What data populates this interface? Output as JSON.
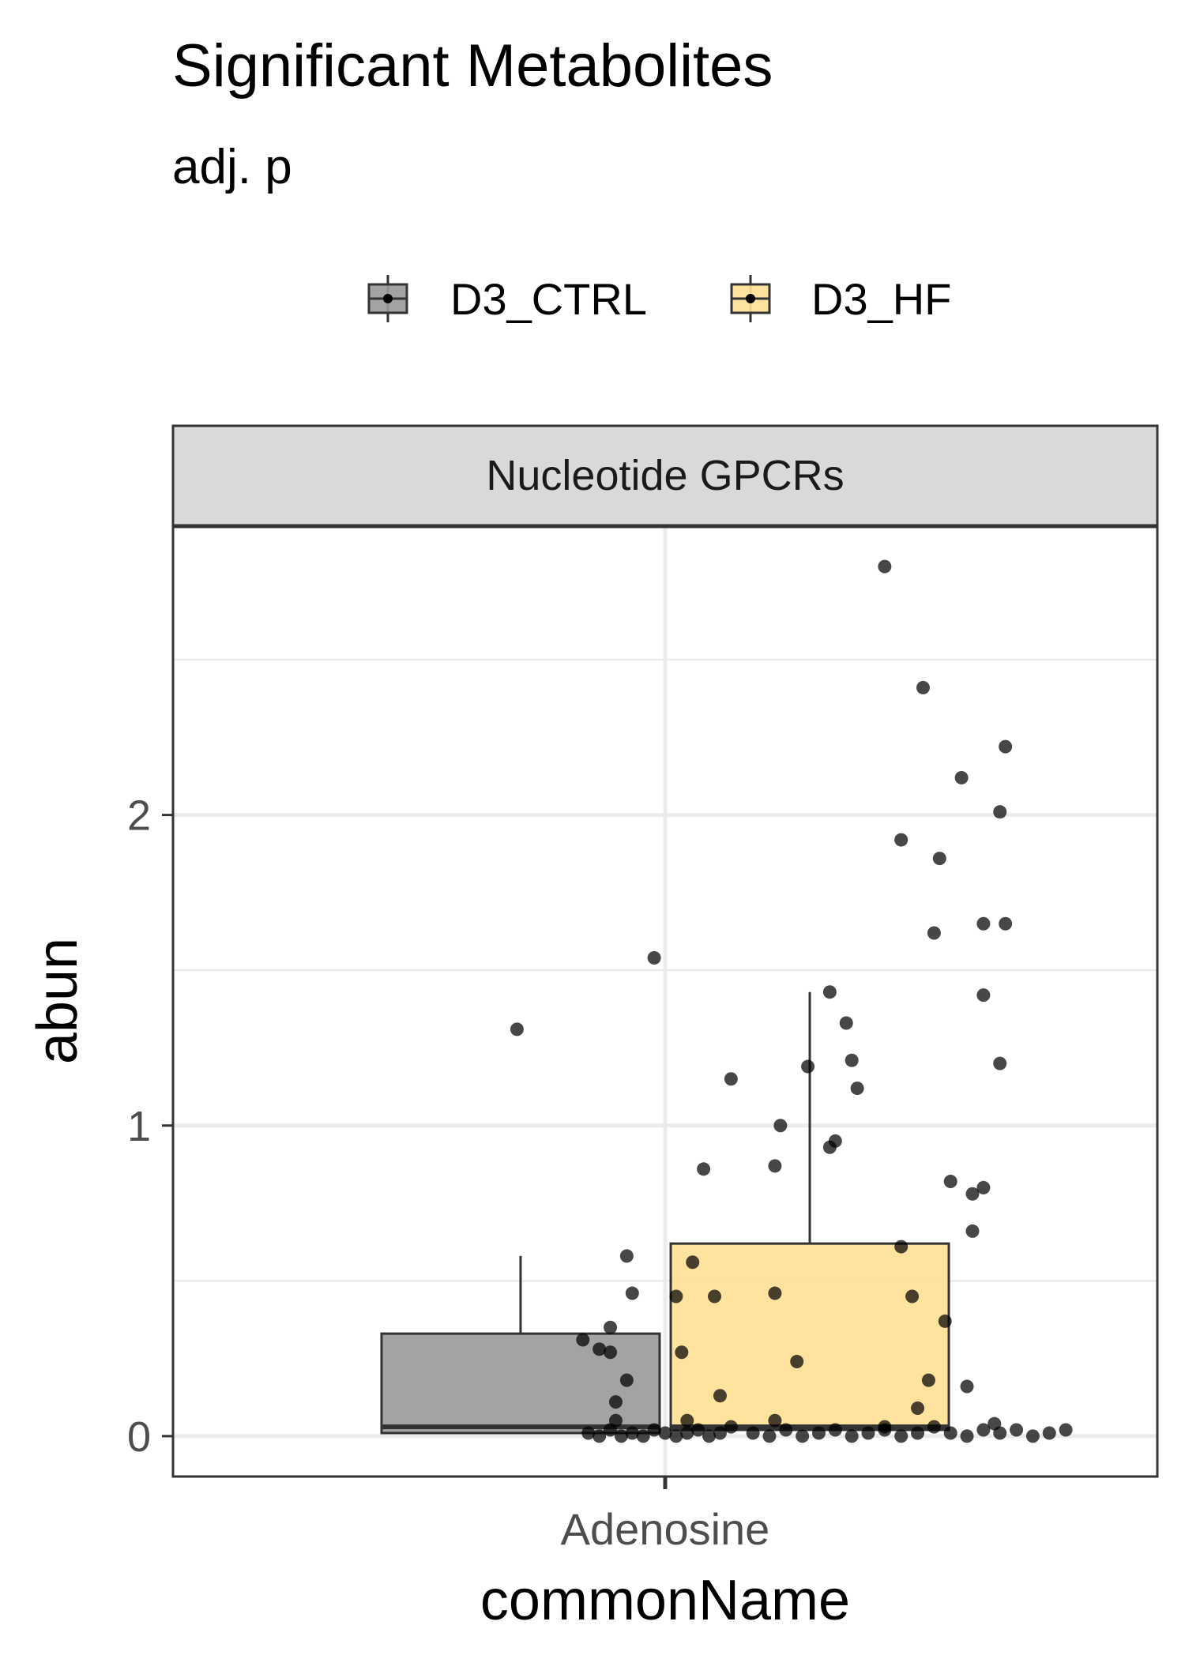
{
  "chart_data": {
    "type": "boxplot",
    "title": "Significant Metabolites",
    "subtitle": "adj. p",
    "facet_label": "Nucleotide GPCRs",
    "xlabel": "commonName",
    "ylabel": "abun",
    "categories": [
      "Adenosine"
    ],
    "yticks": [
      0,
      1,
      2
    ],
    "ylim": [
      -0.13,
      2.93
    ],
    "grid": true,
    "legend_position": "top",
    "legend": [
      {
        "name": "D3_CTRL",
        "color": "#999999"
      },
      {
        "name": "D3_HF",
        "color": "#fedf92"
      }
    ],
    "series": [
      {
        "name": "D3_CTRL",
        "color": "#999999",
        "box": {
          "min": 0.0,
          "q1": 0.01,
          "median": 0.03,
          "q3": 0.33,
          "whisker_high": 0.58
        },
        "points": [
          [
            -0.14,
            0.01
          ],
          [
            -0.12,
            0.0
          ],
          [
            -0.1,
            0.02
          ],
          [
            -0.08,
            0.0
          ],
          [
            -0.06,
            0.01
          ],
          [
            -0.04,
            0.0
          ],
          [
            -0.02,
            0.02
          ],
          [
            0.0,
            0.01
          ],
          [
            0.02,
            0.0
          ],
          [
            0.04,
            0.01
          ],
          [
            0.06,
            0.02
          ],
          [
            0.08,
            0.0
          ],
          [
            0.1,
            0.01
          ],
          [
            0.12,
            0.03
          ],
          [
            -0.09,
            0.05
          ],
          [
            0.04,
            0.05
          ],
          [
            -0.02,
            1.54
          ],
          [
            -0.27,
            1.31
          ],
          [
            0.12,
            1.15
          ],
          [
            0.07,
            0.86
          ],
          [
            -0.07,
            0.58
          ],
          [
            0.05,
            0.56
          ],
          [
            -0.06,
            0.46
          ],
          [
            0.02,
            0.45
          ],
          [
            0.09,
            0.45
          ],
          [
            -0.1,
            0.35
          ],
          [
            -0.15,
            0.31
          ],
          [
            -0.12,
            0.28
          ],
          [
            -0.1,
            0.27
          ],
          [
            0.03,
            0.27
          ],
          [
            -0.07,
            0.18
          ],
          [
            0.1,
            0.13
          ],
          [
            -0.09,
            0.11
          ]
        ]
      },
      {
        "name": "D3_HF",
        "color": "#fedf92",
        "box": {
          "min": 0.0,
          "q1": 0.02,
          "median": 0.03,
          "q3": 0.62,
          "whisker_high": 1.43
        },
        "points": [
          [
            0.16,
            0.01
          ],
          [
            0.19,
            0.0
          ],
          [
            0.22,
            0.02
          ],
          [
            0.25,
            0.0
          ],
          [
            0.28,
            0.01
          ],
          [
            0.31,
            0.02
          ],
          [
            0.34,
            0.0
          ],
          [
            0.37,
            0.01
          ],
          [
            0.4,
            0.02
          ],
          [
            0.43,
            0.0
          ],
          [
            0.46,
            0.01
          ],
          [
            0.49,
            0.03
          ],
          [
            0.52,
            0.01
          ],
          [
            0.55,
            0.0
          ],
          [
            0.58,
            0.02
          ],
          [
            0.61,
            0.01
          ],
          [
            0.64,
            0.02
          ],
          [
            0.67,
            0.0
          ],
          [
            0.7,
            0.01
          ],
          [
            0.73,
            0.02
          ],
          [
            0.2,
            0.05
          ],
          [
            0.4,
            0.03
          ],
          [
            0.6,
            0.04
          ],
          [
            0.4,
            2.8
          ],
          [
            0.47,
            2.41
          ],
          [
            0.62,
            2.22
          ],
          [
            0.54,
            2.12
          ],
          [
            0.61,
            2.01
          ],
          [
            0.43,
            1.92
          ],
          [
            0.5,
            1.86
          ],
          [
            0.58,
            1.65
          ],
          [
            0.62,
            1.65
          ],
          [
            0.49,
            1.62
          ],
          [
            0.3,
            1.43
          ],
          [
            0.58,
            1.42
          ],
          [
            0.33,
            1.33
          ],
          [
            0.34,
            1.21
          ],
          [
            0.26,
            1.19
          ],
          [
            0.61,
            1.2
          ],
          [
            0.35,
            1.12
          ],
          [
            0.21,
            1.0
          ],
          [
            0.31,
            0.95
          ],
          [
            0.3,
            0.93
          ],
          [
            0.2,
            0.87
          ],
          [
            0.52,
            0.82
          ],
          [
            0.58,
            0.8
          ],
          [
            0.56,
            0.78
          ],
          [
            0.56,
            0.66
          ],
          [
            0.43,
            0.61
          ],
          [
            0.2,
            0.46
          ],
          [
            0.45,
            0.45
          ],
          [
            0.51,
            0.37
          ],
          [
            0.24,
            0.24
          ],
          [
            0.48,
            0.18
          ],
          [
            0.55,
            0.16
          ],
          [
            0.46,
            0.09
          ]
        ]
      }
    ]
  }
}
